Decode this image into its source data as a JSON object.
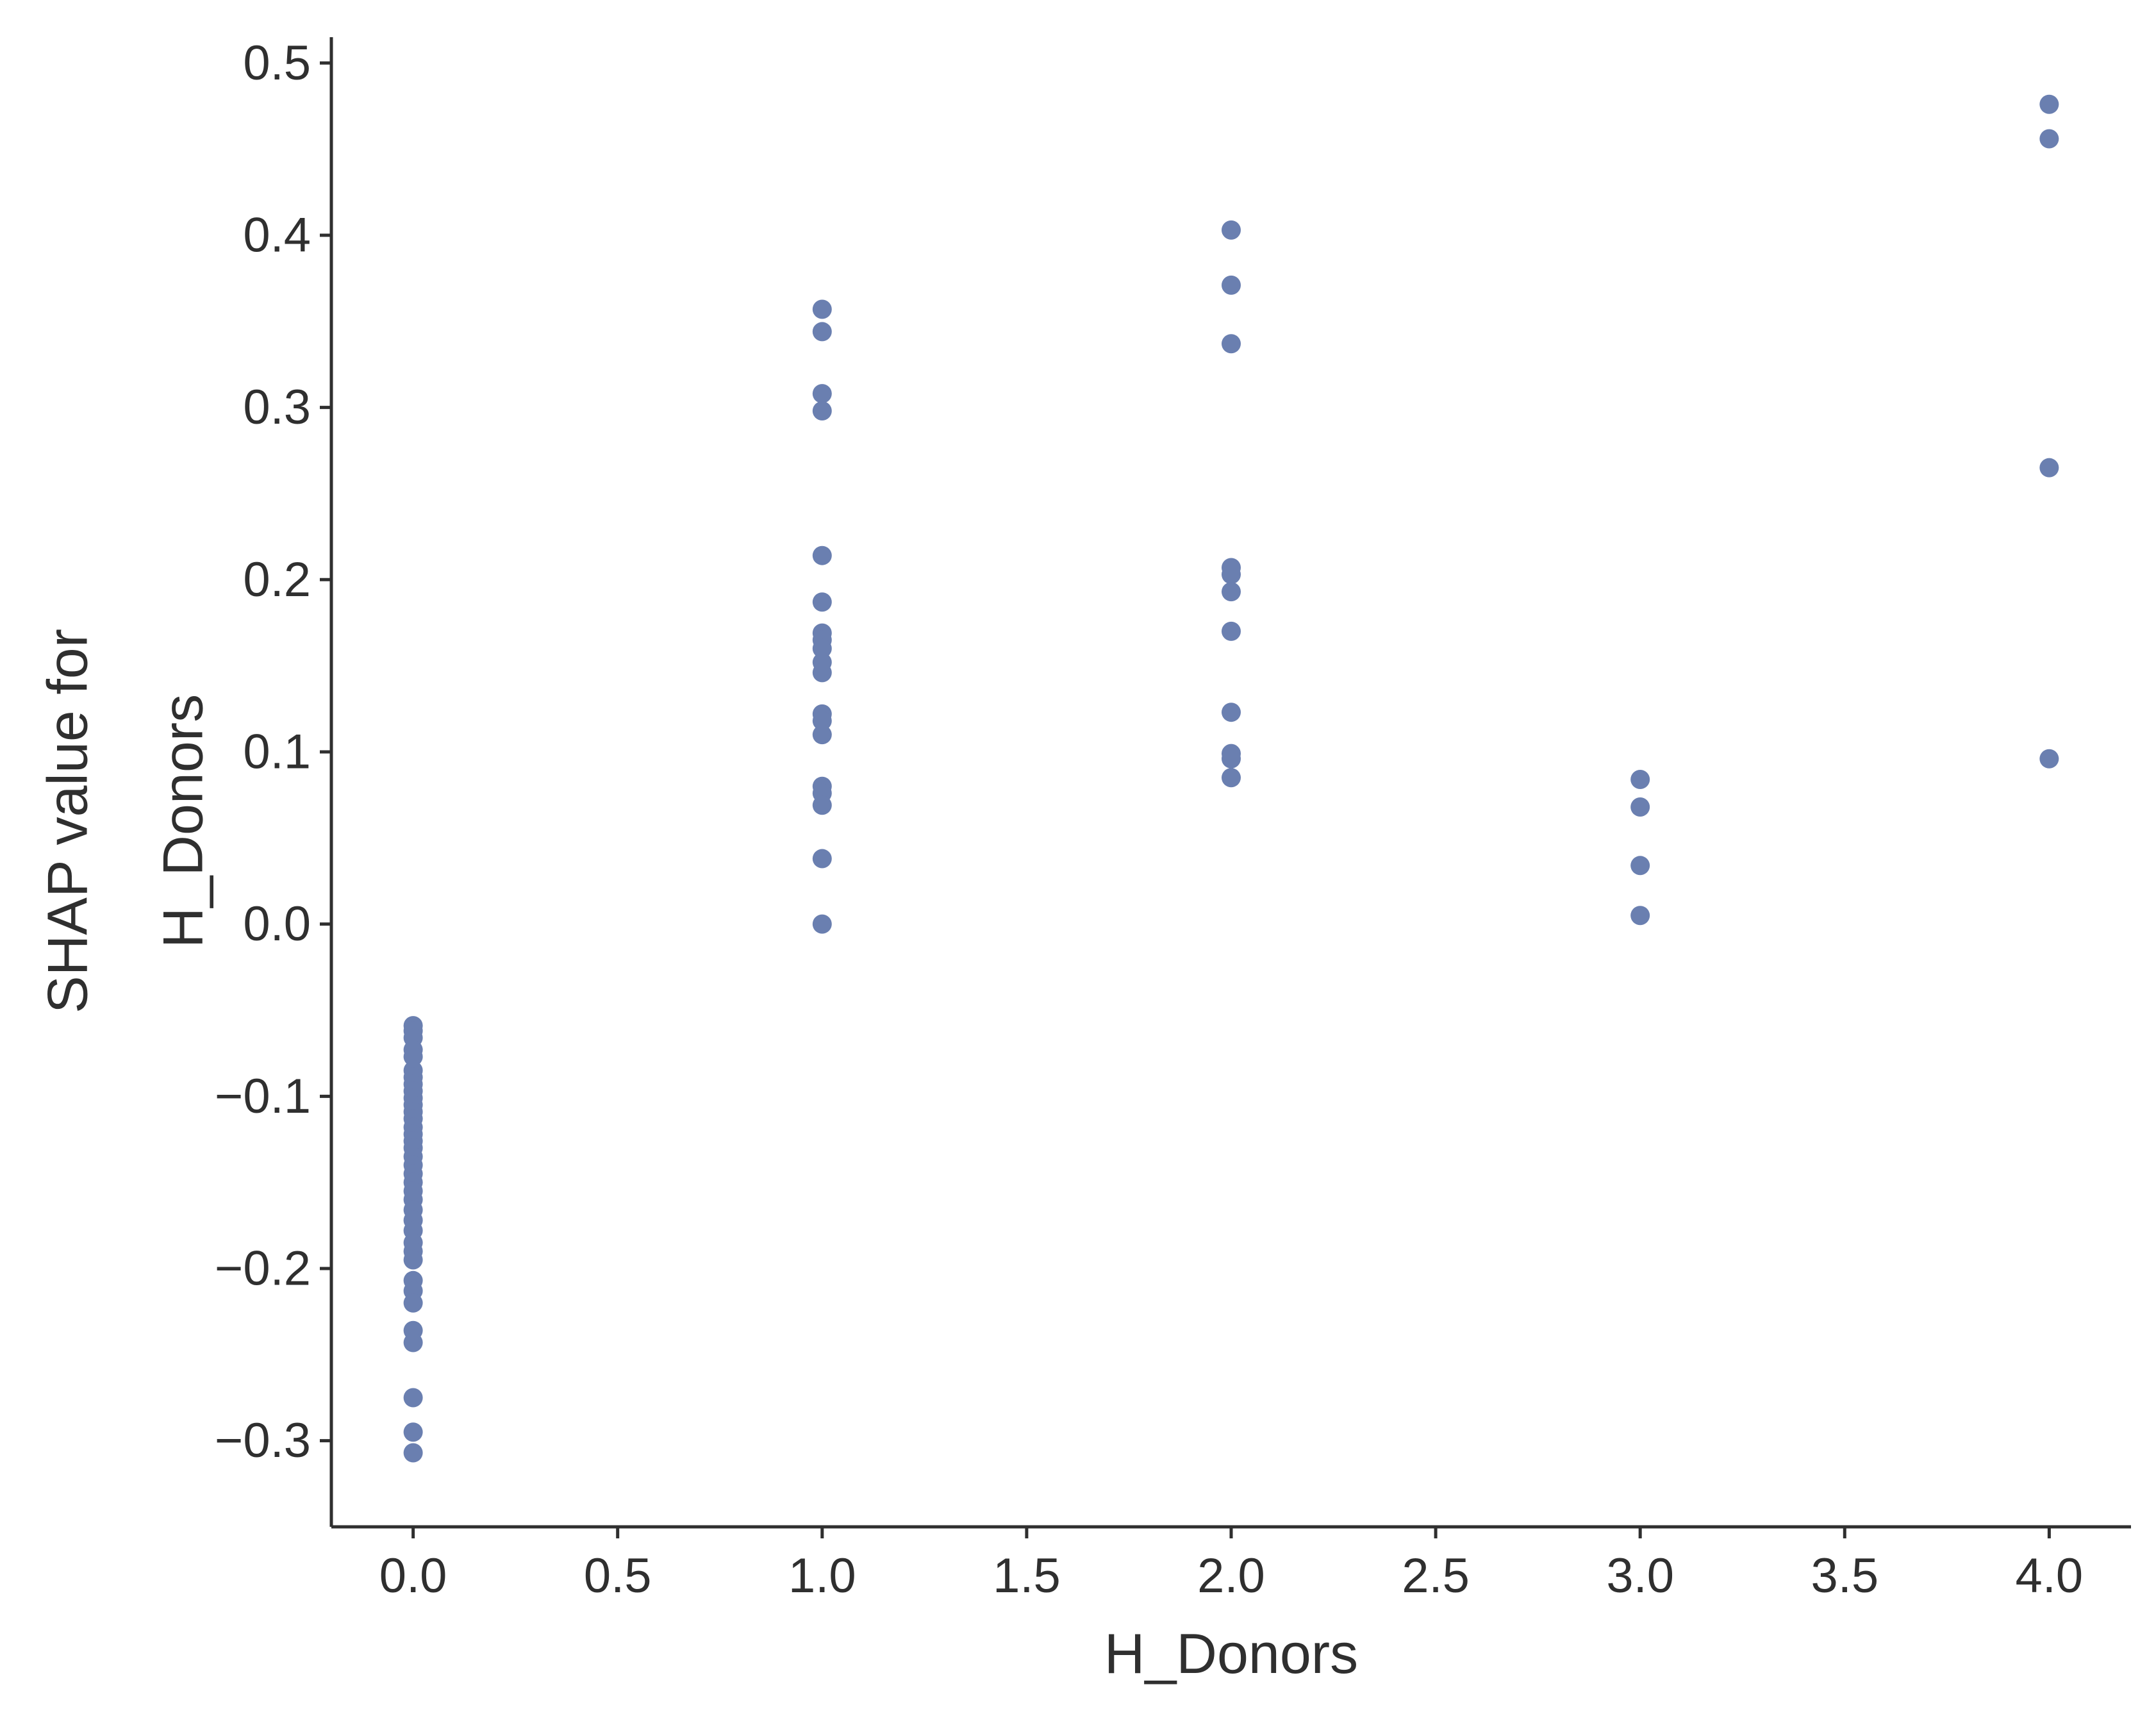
{
  "chart_data": {
    "type": "scatter",
    "title": "",
    "xlabel": "H_Donors",
    "ylabel_lines": [
      "SHAP value for",
      "H_Donors"
    ],
    "xlim": [
      -0.2,
      4.2
    ],
    "ylim": [
      -0.35,
      0.515
    ],
    "xticks": [
      {
        "value": 0.0,
        "label": "0.0"
      },
      {
        "value": 0.5,
        "label": "0.5"
      },
      {
        "value": 1.0,
        "label": "1.0"
      },
      {
        "value": 1.5,
        "label": "1.5"
      },
      {
        "value": 2.0,
        "label": "2.0"
      },
      {
        "value": 2.5,
        "label": "2.5"
      },
      {
        "value": 3.0,
        "label": "3.0"
      },
      {
        "value": 3.5,
        "label": "3.5"
      },
      {
        "value": 4.0,
        "label": "4.0"
      }
    ],
    "yticks": [
      {
        "value": -0.3,
        "label": "−0.3"
      },
      {
        "value": -0.2,
        "label": "−0.2"
      },
      {
        "value": -0.1,
        "label": "−0.1"
      },
      {
        "value": 0.0,
        "label": "0.0"
      },
      {
        "value": 0.1,
        "label": "0.1"
      },
      {
        "value": 0.2,
        "label": "0.2"
      },
      {
        "value": 0.3,
        "label": "0.3"
      },
      {
        "value": 0.4,
        "label": "0.4"
      },
      {
        "value": 0.5,
        "label": "0.5"
      }
    ],
    "grid": false,
    "point_color": "#6a7fb0",
    "axis_color": "#2f2f2f",
    "series": [
      {
        "points": [
          [
            0,
            -0.059
          ],
          [
            0,
            -0.062
          ],
          [
            0,
            -0.066
          ],
          [
            0,
            -0.073
          ],
          [
            0,
            -0.077
          ],
          [
            0,
            -0.085
          ],
          [
            0,
            -0.089
          ],
          [
            0,
            -0.093
          ],
          [
            0,
            -0.097
          ],
          [
            0,
            -0.101
          ],
          [
            0,
            -0.105
          ],
          [
            0,
            -0.109
          ],
          [
            0,
            -0.113
          ],
          [
            0,
            -0.118
          ],
          [
            0,
            -0.122
          ],
          [
            0,
            -0.126
          ],
          [
            0,
            -0.13
          ],
          [
            0,
            -0.135
          ],
          [
            0,
            -0.14
          ],
          [
            0,
            -0.145
          ],
          [
            0,
            -0.15
          ],
          [
            0,
            -0.155
          ],
          [
            0,
            -0.16
          ],
          [
            0,
            -0.166
          ],
          [
            0,
            -0.172
          ],
          [
            0,
            -0.178
          ],
          [
            0,
            -0.185
          ],
          [
            0,
            -0.19
          ],
          [
            0,
            -0.195
          ],
          [
            0,
            -0.207
          ],
          [
            0,
            -0.213
          ],
          [
            0,
            -0.22
          ],
          [
            0,
            -0.236
          ],
          [
            0,
            -0.243
          ],
          [
            0,
            -0.275
          ],
          [
            0,
            -0.295
          ],
          [
            0,
            -0.307
          ],
          [
            1,
            0.357
          ],
          [
            1,
            0.344
          ],
          [
            1,
            0.308
          ],
          [
            1,
            0.298
          ],
          [
            1,
            0.214
          ],
          [
            1,
            0.187
          ],
          [
            1,
            0.169
          ],
          [
            1,
            0.165
          ],
          [
            1,
            0.16
          ],
          [
            1,
            0.152
          ],
          [
            1,
            0.146
          ],
          [
            1,
            0.122
          ],
          [
            1,
            0.118
          ],
          [
            1,
            0.11
          ],
          [
            1,
            0.08
          ],
          [
            1,
            0.076
          ],
          [
            1,
            0.069
          ],
          [
            1,
            0.038
          ],
          [
            1,
            0.0
          ],
          [
            2,
            0.403
          ],
          [
            2,
            0.371
          ],
          [
            2,
            0.337
          ],
          [
            2,
            0.207
          ],
          [
            2,
            0.203
          ],
          [
            2,
            0.193
          ],
          [
            2,
            0.17
          ],
          [
            2,
            0.123
          ],
          [
            2,
            0.099
          ],
          [
            2,
            0.096
          ],
          [
            2,
            0.085
          ],
          [
            3,
            0.084
          ],
          [
            3,
            0.068
          ],
          [
            3,
            0.034
          ],
          [
            3,
            0.005
          ],
          [
            4,
            0.476
          ],
          [
            4,
            0.456
          ],
          [
            4,
            0.265
          ],
          [
            4,
            0.096
          ]
        ]
      }
    ]
  }
}
